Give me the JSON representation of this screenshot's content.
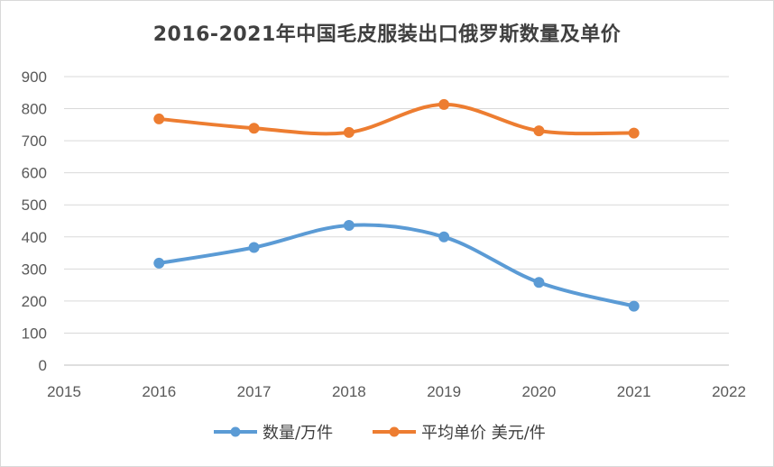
{
  "chart_data": {
    "type": "line",
    "title": "2016-2021年中国毛皮服装出口俄罗斯数量及单价",
    "xlabel": "",
    "ylabel": "",
    "xlim": [
      2015,
      2022
    ],
    "ylim": [
      0,
      900
    ],
    "x_ticks": [
      2015,
      2016,
      2017,
      2018,
      2019,
      2020,
      2021,
      2022
    ],
    "y_ticks": [
      0,
      100,
      200,
      300,
      400,
      500,
      600,
      700,
      800,
      900
    ],
    "grid": "horizontal",
    "legend": "bottom",
    "series": [
      {
        "name": "数量/万件",
        "color": "#5B9BD5",
        "x": [
          2016,
          2017,
          2018,
          2019,
          2020,
          2021
        ],
        "values": [
          318,
          367,
          436,
          400,
          258,
          184
        ]
      },
      {
        "name": "平均单价 美元/件",
        "color": "#ED7D31",
        "x": [
          2016,
          2017,
          2018,
          2019,
          2020,
          2021
        ],
        "values": [
          768,
          739,
          726,
          813,
          731,
          724
        ]
      }
    ]
  }
}
